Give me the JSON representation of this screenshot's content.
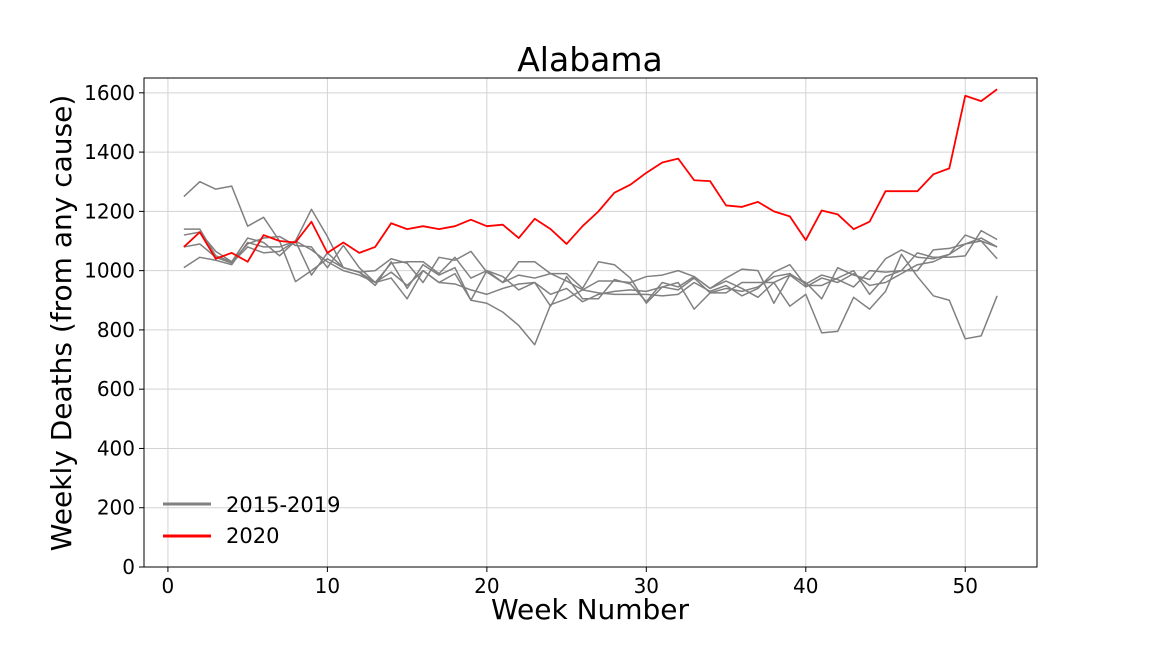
{
  "chart_data": {
    "type": "line",
    "title": "Alabama",
    "xlabel": "Week Number",
    "ylabel": "Weekly Deaths (from any cause)",
    "xlim": [
      -1.5,
      54.5
    ],
    "ylim": [
      0,
      1650
    ],
    "x_ticks": [
      0,
      10,
      20,
      30,
      40,
      50
    ],
    "y_ticks": [
      0,
      200,
      400,
      600,
      800,
      1000,
      1200,
      1400,
      1600
    ],
    "grid": true,
    "legend_placement": "lower-left",
    "legend": [
      {
        "label": "2015-2019",
        "color": "#808080"
      },
      {
        "label": "2020",
        "color": "#ff0000"
      }
    ],
    "x": [
      1,
      2,
      3,
      4,
      5,
      6,
      7,
      8,
      9,
      10,
      11,
      12,
      13,
      14,
      15,
      16,
      17,
      18,
      19,
      20,
      21,
      22,
      23,
      24,
      25,
      26,
      27,
      28,
      29,
      30,
      31,
      32,
      33,
      34,
      35,
      36,
      37,
      38,
      39,
      40,
      41,
      42,
      43,
      44,
      45,
      46,
      47,
      48,
      49,
      50,
      51,
      52
    ],
    "series": [
      {
        "group": "2015-2019",
        "color": "#808080",
        "values": [
          1250,
          1300,
          1275,
          1285,
          1150,
          1180,
          1100,
          963,
          1000,
          1040,
          1010,
          995,
          960,
          975,
          905,
          1000,
          960,
          990,
          900,
          1000,
          980,
          935,
          960,
          880,
          980,
          905,
          905,
          970,
          955,
          895,
          960,
          945,
          980,
          940,
          965,
          940,
          910,
          960,
          880,
          920,
          790,
          795,
          910,
          870,
          930,
          1055,
          980,
          915,
          900,
          770,
          780,
          915
        ]
      },
      {
        "group": "2015-2019",
        "color": "#808080",
        "values": [
          1140,
          1140,
          1050,
          1030,
          1110,
          1095,
          1050,
          1100,
          1207,
          1115,
          1010,
          995,
          1000,
          1040,
          1025,
          960,
          1045,
          1035,
          1065,
          995,
          960,
          1030,
          1030,
          990,
          990,
          940,
          1030,
          1020,
          975,
          890,
          945,
          935,
          975,
          925,
          940,
          930,
          945,
          980,
          990,
          955,
          985,
          970,
          945,
          1000,
          995,
          1000,
          1060,
          1045,
          1045,
          1050,
          1135,
          1105
        ]
      },
      {
        "group": "2015-2019",
        "color": "#808080",
        "values": [
          1120,
          1130,
          1065,
          1030,
          1090,
          1110,
          1115,
          1085,
          1080,
          1010,
          1085,
          1010,
          960,
          1025,
          1030,
          1030,
          990,
          1045,
          975,
          1000,
          960,
          985,
          975,
          990,
          965,
          935,
          965,
          965,
          960,
          980,
          985,
          1000,
          980,
          940,
          975,
          1005,
          1000,
          890,
          985,
          960,
          905,
          1010,
          985,
          970,
          1040,
          1070,
          1045,
          1040,
          1055,
          1120,
          1100,
          1040
        ]
      },
      {
        "group": "2015-2019",
        "color": "#808080",
        "values": [
          1080,
          1090,
          1045,
          1025,
          1080,
          1060,
          1065,
          1100,
          985,
          1060,
          1010,
          995,
          950,
          1030,
          940,
          1020,
          985,
          1010,
          900,
          890,
          860,
          815,
          750,
          885,
          905,
          935,
          925,
          920,
          920,
          920,
          915,
          920,
          960,
          930,
          950,
          915,
          940,
          995,
          1020,
          950,
          950,
          975,
          1000,
          920,
          980,
          1000,
          1000,
          1070,
          1075,
          1090,
          1110,
          1080
        ]
      },
      {
        "group": "2015-2019",
        "color": "#808080",
        "values": [
          1010,
          1045,
          1035,
          1020,
          1095,
          1080,
          1080,
          1100,
          1070,
          1030,
          1000,
          985,
          960,
          995,
          950,
          1000,
          960,
          955,
          935,
          920,
          940,
          955,
          960,
          920,
          940,
          895,
          920,
          930,
          935,
          930,
          945,
          960,
          870,
          925,
          925,
          960,
          960,
          960,
          985,
          945,
          975,
          960,
          990,
          950,
          960,
          990,
          1020,
          1030,
          1055,
          1090,
          1100,
          1080
        ]
      },
      {
        "group": "2020",
        "color": "#ff0000",
        "values": [
          1080,
          1130,
          1040,
          1060,
          1030,
          1120,
          1100,
          1095,
          1165,
          1060,
          1095,
          1060,
          1080,
          1160,
          1140,
          1150,
          1140,
          1150,
          1172,
          1150,
          1155,
          1110,
          1175,
          1140,
          1090,
          1150,
          1200,
          1263,
          1290,
          1330,
          1365,
          1378,
          1305,
          1302,
          1220,
          1215,
          1232,
          1200,
          1183,
          1103,
          1203,
          1190,
          1140,
          1165,
          1268,
          1268,
          1268,
          1325,
          1345,
          1590,
          1572,
          1612
        ]
      }
    ]
  }
}
